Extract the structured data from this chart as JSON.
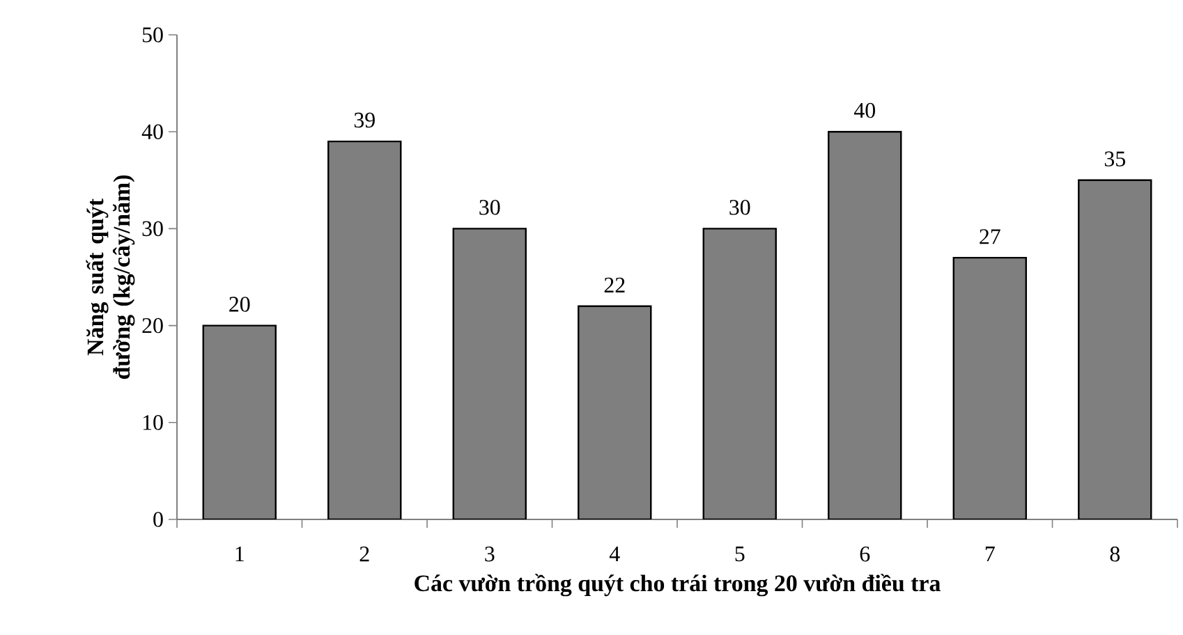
{
  "chart_data": {
    "type": "bar",
    "xlabel": "Các vườn trồng quýt cho trái trong 20 vườn điều tra",
    "ylabel": "Năng suất quýt đường (kg/cây/năm)",
    "categories": [
      "1",
      "2",
      "3",
      "4",
      "5",
      "6",
      "7",
      "8"
    ],
    "values": [
      20,
      39,
      30,
      22,
      30,
      40,
      27,
      35
    ],
    "color": "#7f7f7f",
    "ylim": [
      0,
      50
    ],
    "yticks": [
      0,
      10,
      20,
      30,
      40,
      50
    ],
    "data_labels": true
  }
}
